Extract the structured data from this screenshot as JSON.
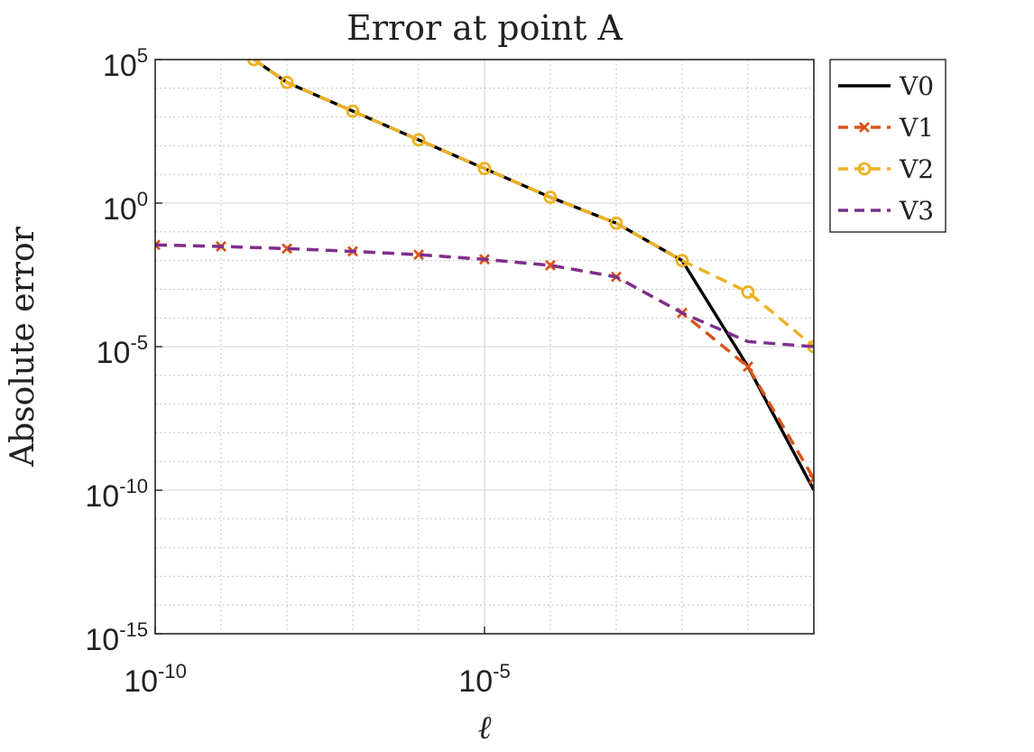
{
  "chart_data": {
    "type": "line",
    "title": "Error at point A",
    "xlabel": "ℓ",
    "ylabel": "Absolute error",
    "x_scale": "log",
    "y_scale": "log",
    "xlim": [
      1e-10,
      1
    ],
    "ylim": [
      1e-15,
      100000
    ],
    "x_ticks": [
      {
        "base": "10",
        "exp": "-10",
        "value": 1e-10
      },
      {
        "base": "10",
        "exp": "-5",
        "value": 1e-05
      }
    ],
    "y_ticks": [
      {
        "base": "10",
        "exp": "5",
        "value": 100000
      },
      {
        "base": "10",
        "exp": "0",
        "value": 1
      },
      {
        "base": "10",
        "exp": "-5",
        "value": 1e-05
      },
      {
        "base": "10",
        "exp": "-10",
        "value": 1e-10
      },
      {
        "base": "10",
        "exp": "-15",
        "value": 1e-15
      }
    ],
    "grid": true,
    "minor_grid": true,
    "legend_position": "outside-top-right",
    "series": [
      {
        "name": "V0",
        "color": "#000000",
        "dash": "solid",
        "marker": "none",
        "x": [
          3.16e-09,
          1e-08,
          1e-07,
          1e-06,
          1e-05,
          0.0001,
          0.001,
          0.01,
          0.1,
          1
        ],
        "y": [
          100000,
          16000,
          1600,
          160,
          16,
          1.6,
          0.2,
          0.01,
          2e-06,
          1e-10
        ]
      },
      {
        "name": "V1",
        "color": "#D95319",
        "dash": "dashed",
        "marker": "x",
        "x": [
          1e-10,
          1e-09,
          1e-08,
          1e-07,
          1e-06,
          1e-05,
          0.0001,
          0.001,
          0.01,
          0.1,
          1
        ],
        "y": [
          0.035,
          0.031,
          0.026,
          0.021,
          0.016,
          0.011,
          0.0068,
          0.0027,
          0.00015,
          2e-06,
          2.5e-10
        ]
      },
      {
        "name": "V2",
        "color": "#EDB120",
        "dash": "dashed",
        "marker": "o",
        "x": [
          3.16e-09,
          1e-08,
          1e-07,
          1e-06,
          1e-05,
          0.0001,
          0.001,
          0.01,
          0.1,
          1
        ],
        "y": [
          100000,
          16000,
          1600,
          160,
          16,
          1.6,
          0.2,
          0.01,
          0.0008,
          1e-05
        ]
      },
      {
        "name": "V3",
        "color": "#7E2F8E",
        "dash": "dashed",
        "marker": "none",
        "x": [
          1e-10,
          1e-09,
          1e-08,
          1e-07,
          1e-06,
          1e-05,
          0.0001,
          0.001,
          0.01,
          0.1,
          1
        ],
        "y": [
          0.035,
          0.031,
          0.026,
          0.021,
          0.016,
          0.011,
          0.0068,
          0.0027,
          0.00015,
          1.5e-05,
          1e-05
        ]
      }
    ]
  }
}
